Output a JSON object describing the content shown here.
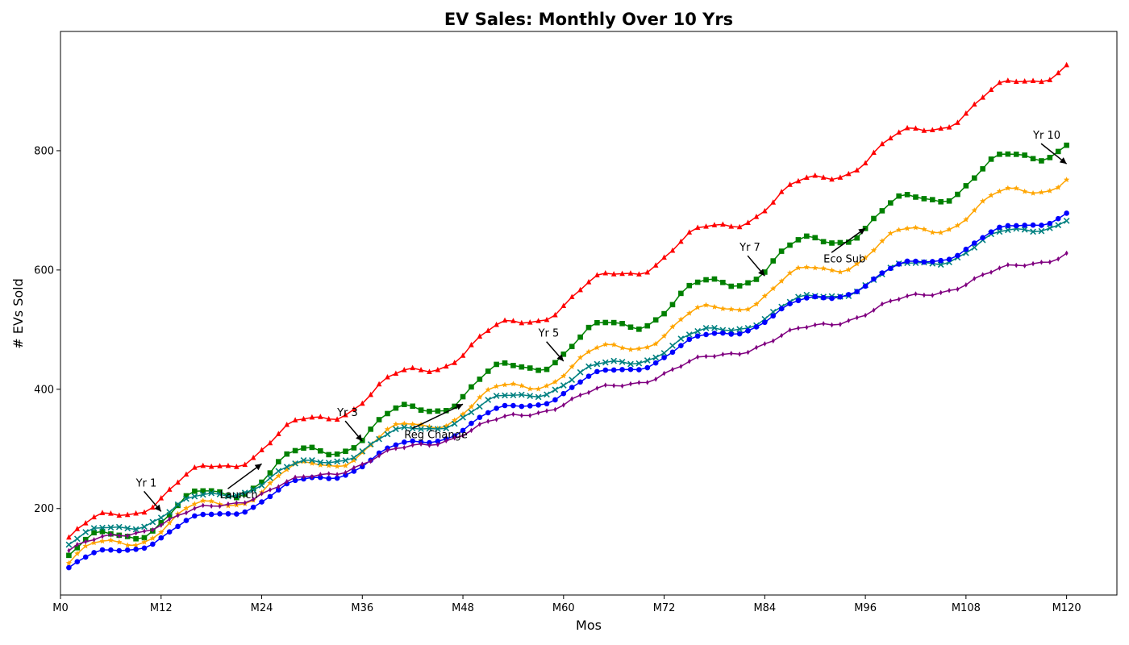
{
  "chart_data": {
    "type": "line",
    "title": "EV Sales: Monthly Over 10 Yrs",
    "xlabel": "Mos",
    "ylabel": "# EVs Sold",
    "xlim": [
      0,
      126
    ],
    "ylim": [
      55,
      1000
    ],
    "x_ticks": [
      {
        "value": 0,
        "label": "M0"
      },
      {
        "value": 12,
        "label": "M12"
      },
      {
        "value": 24,
        "label": "M24"
      },
      {
        "value": 36,
        "label": "M36"
      },
      {
        "value": 48,
        "label": "M48"
      },
      {
        "value": 60,
        "label": "M60"
      },
      {
        "value": 72,
        "label": "M72"
      },
      {
        "value": 84,
        "label": "M84"
      },
      {
        "value": 96,
        "label": "M96"
      },
      {
        "value": 108,
        "label": "M108"
      },
      {
        "value": 120,
        "label": "M120"
      }
    ],
    "y_ticks": [
      {
        "value": 200,
        "label": "200"
      },
      {
        "value": 400,
        "label": "400"
      },
      {
        "value": 600,
        "label": "600"
      },
      {
        "value": 800,
        "label": "800"
      }
    ],
    "grid": false,
    "legend": "none",
    "series": [
      {
        "color": "#ff0000",
        "marker": "triangle",
        "start": 150,
        "end": 950,
        "amp": 16,
        "noise": 2
      },
      {
        "color": "#008000",
        "marker": "square",
        "start": 120,
        "end": 820,
        "amp": 20,
        "noise": 2
      },
      {
        "color": "#ffa500",
        "marker": "star",
        "start": 110,
        "end": 760,
        "amp": 17,
        "noise": 1.5
      },
      {
        "color": "#008080",
        "marker": "x",
        "start": 140,
        "end": 690,
        "amp": 12,
        "noise": 1.5
      },
      {
        "color": "#0000ff",
        "marker": "circle",
        "start": 100,
        "end": 700,
        "amp": 11,
        "noise": 1
      },
      {
        "color": "#800080",
        "marker": "diamond",
        "start": 130,
        "end": 630,
        "amp": 7,
        "noise": 2
      }
    ],
    "annotations": [
      {
        "text": "Yr 1",
        "x": 12,
        "y": 195,
        "text_x": 9,
        "text_y": 237
      },
      {
        "text": "Launch",
        "x": 24,
        "y": 275,
        "text_x": 19,
        "text_y": 217
      },
      {
        "text": "Yr 3",
        "x": 36,
        "y": 313,
        "text_x": 33,
        "text_y": 355
      },
      {
        "text": "Reg Change",
        "x": 48,
        "y": 375,
        "text_x": 41,
        "text_y": 318
      },
      {
        "text": "Yr 5",
        "x": 60,
        "y": 447,
        "text_x": 57,
        "text_y": 488
      },
      {
        "text": "Yr 7",
        "x": 84,
        "y": 590,
        "text_x": 81,
        "text_y": 632
      },
      {
        "text": "Eco Sub",
        "x": 96,
        "y": 670,
        "text_x": 91,
        "text_y": 613
      },
      {
        "text": "Yr 10",
        "x": 120,
        "y": 778,
        "text_x": 116,
        "text_y": 820
      }
    ]
  }
}
